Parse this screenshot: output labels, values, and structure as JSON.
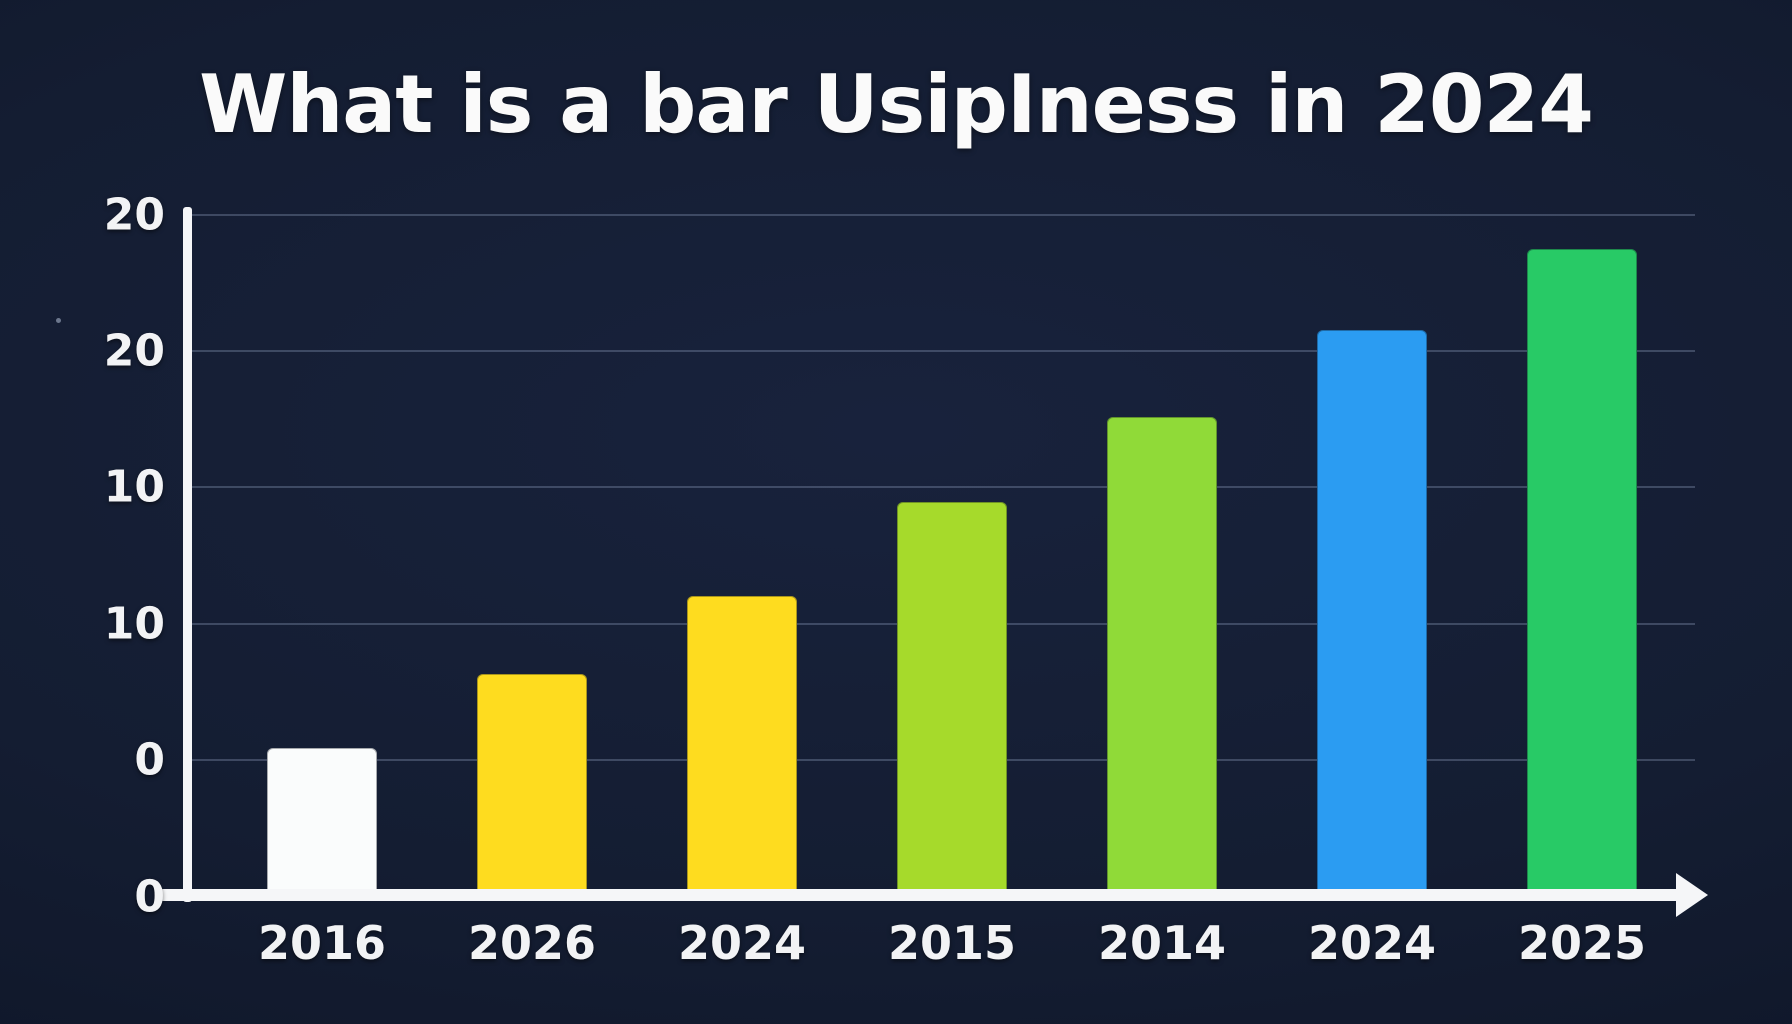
{
  "chart_data": {
    "type": "bar",
    "title": "What is a bar UsipIness in 2024",
    "categories": [
      "2016",
      "2026",
      "2024",
      "2015",
      "2014",
      "2024",
      "2025"
    ],
    "values": [
      4.2,
      6.4,
      8.7,
      11.5,
      14.0,
      16.6,
      19.0
    ],
    "bar_colors": [
      "#fafcfc",
      "#fedc1f",
      "#fedc1f",
      "#a6da2b",
      "#90da38",
      "#2b9cf2",
      "#28ca66"
    ],
    "y_tick_labels": [
      "20",
      "20",
      "10",
      "10",
      "0",
      "0"
    ],
    "xlabel": "",
    "ylabel": "",
    "ylim": [
      0,
      20
    ],
    "grid": true,
    "legend": "none",
    "background_color": "#131c30",
    "axis_color": "#f5f6f8",
    "text_color": "#f2f3f5"
  }
}
